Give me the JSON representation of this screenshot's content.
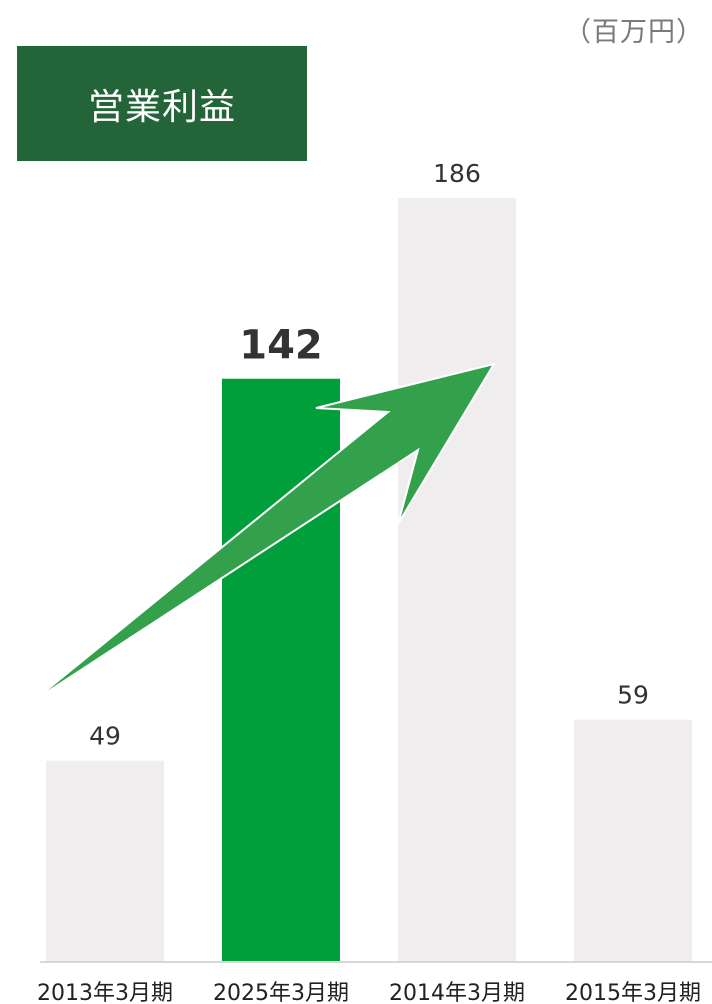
{
  "unit_label": "（百万円）",
  "title": "営業利益",
  "colors": {
    "highlight": "#009f3c",
    "bar": "#efedee",
    "title_bg": "#236439",
    "arrow": "#33a04c"
  },
  "chart_data": {
    "type": "bar",
    "title": "営業利益",
    "ylabel": "（百万円）",
    "categories": [
      "2013年3月期",
      "2025年3月期",
      "2014年3月期",
      "2015年3月期"
    ],
    "values": [
      49,
      142,
      186,
      59
    ],
    "highlight_index": 1,
    "ylim": [
      0,
      186
    ],
    "grid": false,
    "legend": "none",
    "annotations": [
      "green arrow pointing upward across bars"
    ]
  }
}
